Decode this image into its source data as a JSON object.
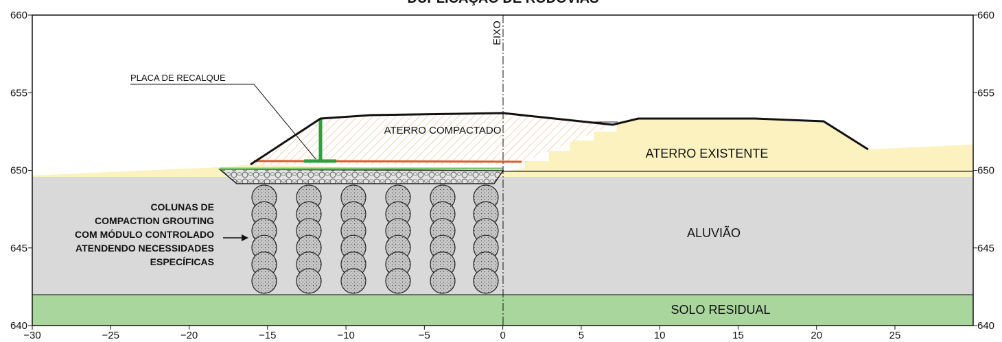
{
  "title": "DUPLICAÇÃO DE RODOVIAS",
  "axes": {
    "xticks": [
      {
        "value": -30,
        "label": "−30"
      },
      {
        "value": -25,
        "label": "−25"
      },
      {
        "value": -20,
        "label": "−20"
      },
      {
        "value": -15,
        "label": "−15"
      },
      {
        "value": -10,
        "label": "−10"
      },
      {
        "value": -5,
        "label": "−5"
      },
      0,
      5,
      10,
      15,
      20,
      25
    ],
    "yticks": [
      640,
      645,
      650,
      655,
      660
    ]
  },
  "labels": {
    "axis_line": "EIXO",
    "settlement_plate": "PLACA DE RECALQUE",
    "compacted_fill": "ATERRO COMPACTADO",
    "existing_fill": "ATERRO EXISTENTE",
    "alluvium": "ALUVIÃO",
    "residual_soil": "SOLO RESIDUAL",
    "columns_note": [
      "COLUNAS DE",
      "COMPACTION GROUTING",
      "COM MÓDULO CONTROLADO",
      "ATENDENDO NECESSIDADES",
      "ESPECÍFICAS"
    ]
  }
}
